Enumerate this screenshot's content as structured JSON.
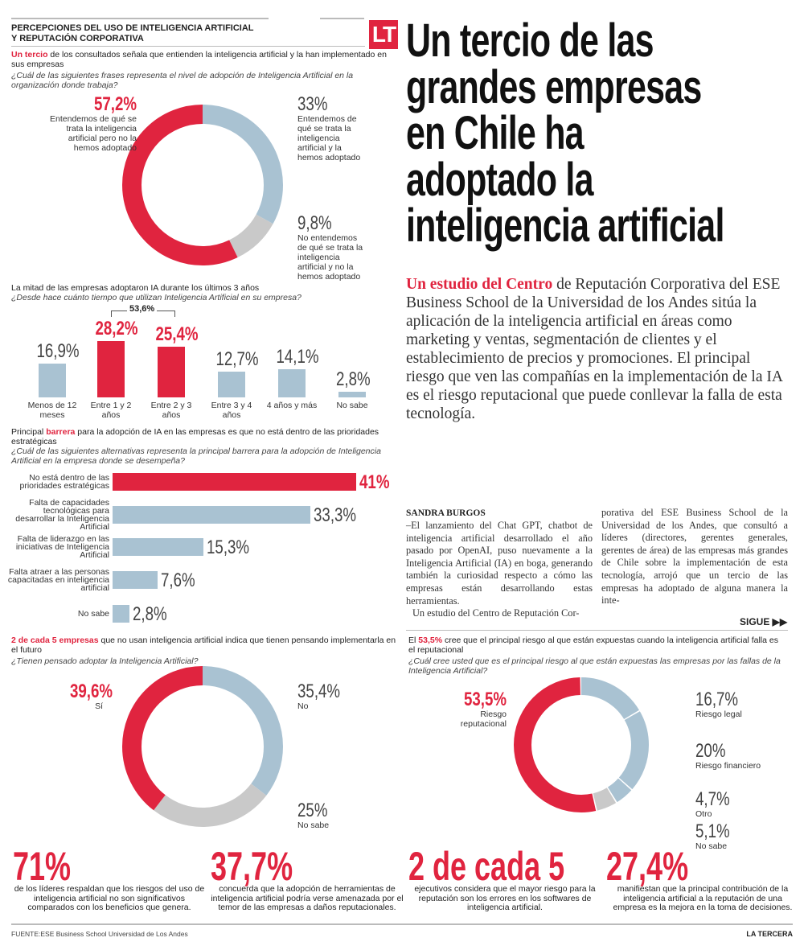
{
  "header": {
    "title_line1": "PERCEPCIONES DEL USO DE INTELIGENCIA ARTIFICIAL",
    "title_line2": "Y REPUTACIÓN CORPORATIVA",
    "logo": "LT"
  },
  "headline": [
    "Un tercio de las",
    "grandes empresas",
    "en Chile ha",
    "adoptado la",
    "inteligencia artificial"
  ],
  "lead": {
    "highlight": "Un estudio del Centro",
    "text": " de Reputación Corporativa del ESE Business School de la Universidad de los Andes sitúa la aplicación de la inteligencia artificial en áreas como marketing y ventas,  segmentación de clientes y el establecimiento de precios y promociones. El principal riesgo que ven las compañías en la implementación de la IA es el riesgo reputacional que puede conllevar la falla de esta tecnología."
  },
  "article": {
    "byline": "SANDRA BURGOS",
    "col1": "–El lanzamiento del Chat GPT, chatbot de inteligencia artificial desarrollado el año pasado por OpenAI, puso nuevamente a la Inteligencia Artificial (IA) en boga, generando también la curiosidad respecto a cómo las empresas están desarrollando estas herramientas.",
    "col1b": "Un estudio del Centro de Reputación Cor-",
    "col2": "porativa del ESE Business School de la Universidad de los Andes, que consultó a líderes (directores, gerentes generales, gerentes de área) de las empresas más grandes de Chile sobre la implementación de esta tecnología, arrojó que un tercio de las empresas ha adoptado de alguna manera la inte-",
    "continue": "SIGUE ▶▶"
  },
  "sections": {
    "s1": {
      "hl": "Un tercio",
      "text": " de los consultados señala que entienden la inteligencia artificial y la han implementado en sus empresas",
      "q": "¿Cuál de las siguientes frases representa el nivel de adopción de Inteligencia Artificial en la organización donde trabaja?"
    },
    "s2": {
      "text": "La mitad de las empresas adoptaron IA durante los últimos 3 años",
      "q": "¿Desde hace cuánto tiempo que utilizan Inteligencia Artificial en su empresa?",
      "bracket": "53,6%"
    },
    "s3": {
      "pre": "Principal ",
      "hl": "barrera",
      "text": " para la adopción de IA en las empresas es que no está dentro de las prioridades estratégicas",
      "q": "¿Cuál de las siguientes alternativas representa la principal barrera para la adopción de Inteligencia Artificial en la empresa donde se desempeña?"
    },
    "s4": {
      "hl": "2 de cada 5 empresas",
      "text": " que no usan inteligencia artificial indica que tienen pensando implementarla en el futuro",
      "q": "¿Tienen pensado adoptar la Inteligencia Artificial?"
    },
    "s5": {
      "pre": "El ",
      "hl": "53,5%",
      "text": " cree que el principal riesgo al que están expuestas cuando la inteligencia artificial falla es el reputacional",
      "q": "¿Cuál cree usted que es el principal riesgo al que están expuestas las empresas por las fallas de la Inteligencia Artificial?"
    }
  },
  "chart_data": [
    {
      "type": "pie",
      "id": "adoption-level",
      "slices": [
        {
          "label": "Entendemos de qué se trata la inteligencia artificial y la hemos adoptado",
          "value": 33,
          "display": "33%",
          "color": "#a9c2d2"
        },
        {
          "label": "No entendemos de qué se trata la inteligencia artificial y no la hemos adoptado",
          "value": 9.8,
          "display": "9,8%",
          "color": "#c9c9c9"
        },
        {
          "label": "Entendemos de qué se trata la inteligencia artificial pero no la hemos adoptado",
          "value": 57.2,
          "display": "57,2%",
          "color": "#e0243f"
        }
      ]
    },
    {
      "type": "bar",
      "id": "adoption-time",
      "categories": [
        "Menos de 12 meses",
        "Entre 1 y 2 años",
        "Entre 2 y 3 años",
        "Entre 3 y 4 años",
        "4 años y más",
        "No sabe"
      ],
      "values": [
        16.9,
        28.2,
        25.4,
        12.7,
        14.1,
        2.8
      ],
      "display": [
        "16,9%",
        "28,2%",
        "25,4%",
        "12,7%",
        "14,1%",
        "2,8%"
      ],
      "highlight": [
        false,
        true,
        true,
        false,
        false,
        false
      ]
    },
    {
      "type": "bar",
      "id": "barriers",
      "orientation": "horizontal",
      "categories": [
        "No está dentro de las prioridades estratégicas",
        "Falta de capacidades tecnológicas para desarrollar la Inteligencia Artificial",
        "Falta de liderazgo en las iniciativas de Inteligencia Artificial",
        "Falta atraer a las personas capacitadas en inteligencia artificial",
        "No sabe"
      ],
      "values": [
        41,
        33.3,
        15.3,
        7.6,
        2.8
      ],
      "display": [
        "41%",
        "33,3%",
        "15,3%",
        "7,6%",
        "2,8%"
      ]
    },
    {
      "type": "pie",
      "id": "plans",
      "slices": [
        {
          "label": "No",
          "value": 35.4,
          "display": "35,4%",
          "color": "#a9c2d2"
        },
        {
          "label": "No sabe",
          "value": 25,
          "display": "25%",
          "color": "#c9c9c9"
        },
        {
          "label": "Sí",
          "value": 39.6,
          "display": "39,6%",
          "color": "#e0243f"
        }
      ]
    },
    {
      "type": "pie",
      "id": "risks",
      "slices": [
        {
          "label": "Riesgo legal",
          "value": 16.7,
          "display": "16,7%",
          "color": "#a9c2d2"
        },
        {
          "label": "Riesgo financiero",
          "value": 20,
          "display": "20%",
          "color": "#a9c2d2"
        },
        {
          "label": "Otro",
          "value": 4.7,
          "display": "4,7%",
          "color": "#a9c2d2"
        },
        {
          "label": "No sabe",
          "value": 5.1,
          "display": "5,1%",
          "color": "#c9c9c9"
        },
        {
          "label": "Riesgo reputacional",
          "value": 53.5,
          "display": "53,5%",
          "color": "#e0243f"
        }
      ]
    }
  ],
  "stats": [
    {
      "num": "71%",
      "text": "de los líderes respaldan que los riesgos del uso de inteligencia artificial no son significativos comparados con los beneficios que genera."
    },
    {
      "num": "37,7%",
      "text": "concuerda que la adopción de herramientas de inteligencia artificial podría verse amenazada por el temor de las empresas a daños reputacionales."
    },
    {
      "num": "2 de cada 5",
      "text": "ejecutivos considera que el mayor riesgo para la reputación son los errores en los softwares de inteligencia artificial."
    },
    {
      "num": "27,4%",
      "text": "manifiestan que la principal contribución de la inteligencia artificial a la reputación de una empresa es la mejora en la toma de decisiones."
    }
  ],
  "footer": {
    "source": "FUENTE:ESE Business School Universidad de Los Andes",
    "brand": "LA TERCERA"
  }
}
